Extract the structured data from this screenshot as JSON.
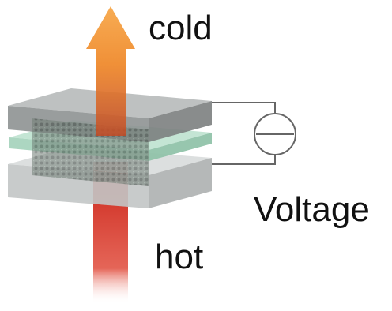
{
  "labels": {
    "cold": "cold",
    "voltage": "Voltage",
    "hot": "hot"
  },
  "icons": {
    "source": "voltage-source-icon",
    "hot_arrow": "hot-heat-flow",
    "cold_arrow": "cold-heat-flow-arrow-icon"
  },
  "colors": {
    "hot": "#d8281d",
    "cold": "#f08a2a",
    "layer_gray": "#9a9c9c",
    "layer_green": "#a9d9c4",
    "wire": "#666666"
  }
}
